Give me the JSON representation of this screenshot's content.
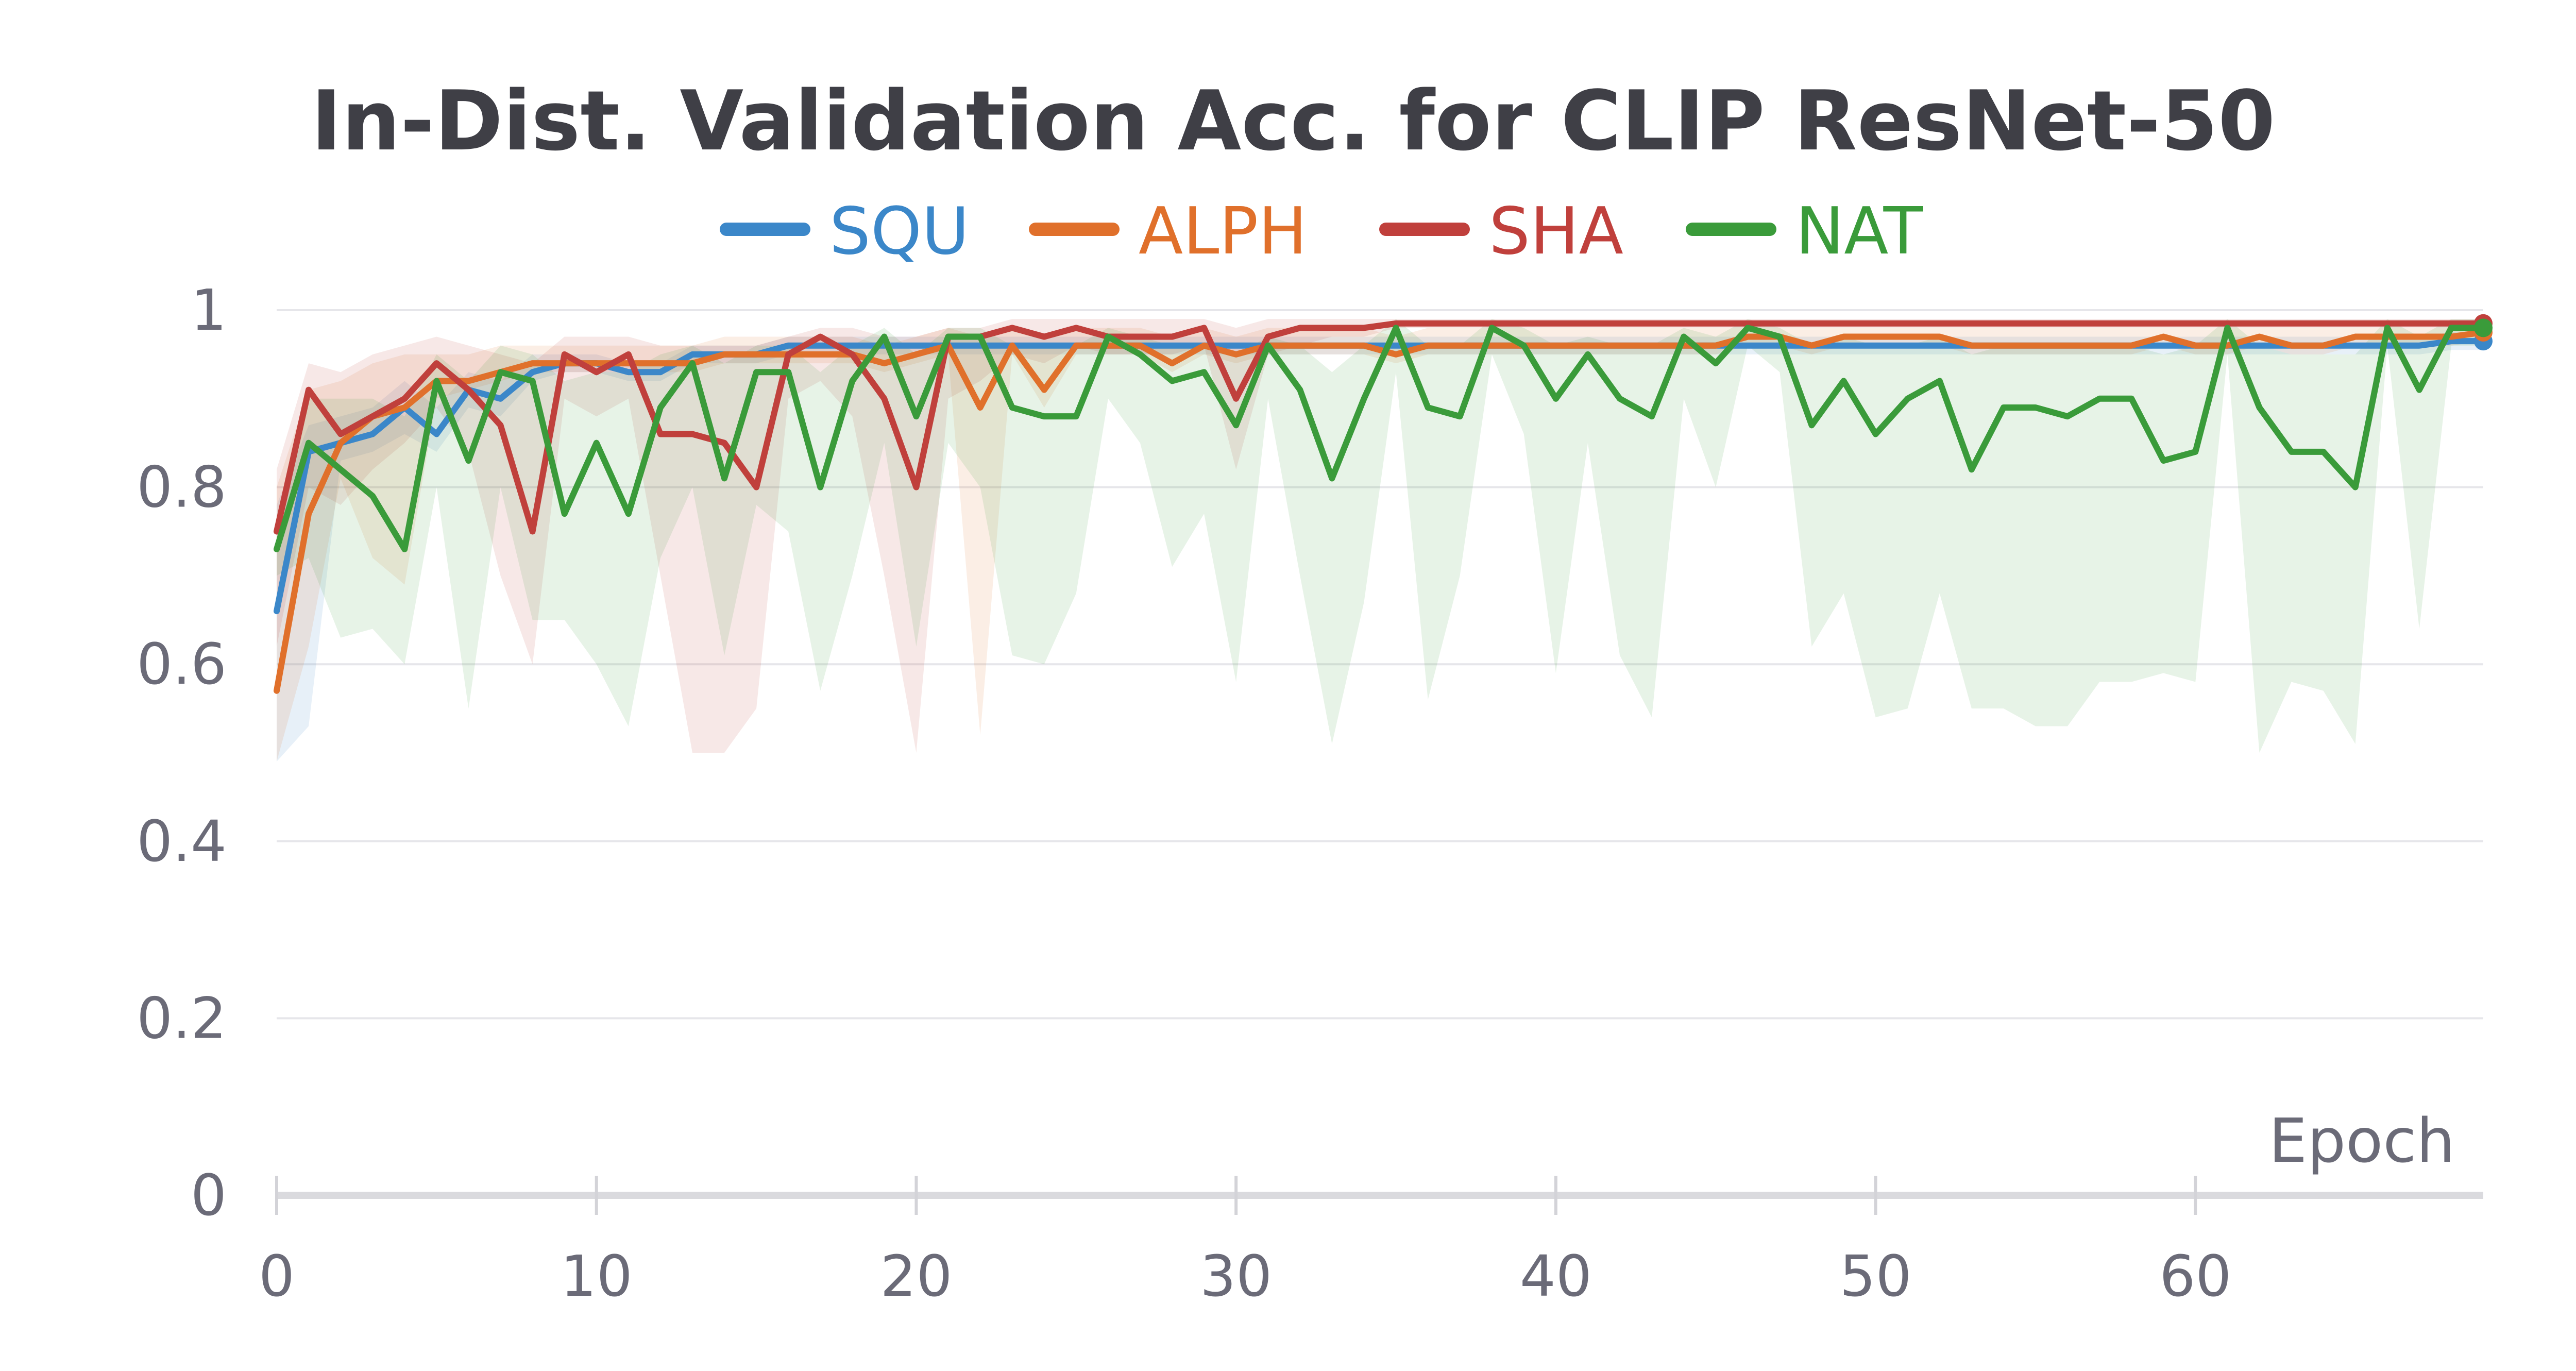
{
  "chart_data": {
    "type": "line",
    "title": "In-Dist. Validation Acc. for CLIP ResNet-50",
    "xlabel": "Epoch",
    "ylabel": "",
    "xlim": [
      0,
      69
    ],
    "ylim": [
      0,
      1
    ],
    "xticks": [
      0,
      10,
      20,
      30,
      40,
      50,
      60
    ],
    "xtick_labels": [
      "0",
      "10",
      "20",
      "30",
      "40",
      "50",
      "60"
    ],
    "yticks": [
      0,
      0.2,
      0.4,
      0.6,
      0.8,
      1
    ],
    "ytick_labels": [
      "0",
      "0.2",
      "0.4",
      "0.6",
      "0.8",
      "1"
    ],
    "grid": true,
    "legend_position": "top-center",
    "series": [
      {
        "name": "SQU",
        "color": "#3b87c9",
        "values": [
          0.66,
          0.84,
          0.85,
          0.86,
          0.89,
          0.86,
          0.91,
          0.9,
          0.93,
          0.94,
          0.94,
          0.93,
          0.93,
          0.95,
          0.95,
          0.95,
          0.96,
          0.96,
          0.96,
          0.96,
          0.96,
          0.96,
          0.96,
          0.96,
          0.96,
          0.96,
          0.96,
          0.96,
          0.96,
          0.96,
          0.96,
          0.96,
          0.96,
          0.96,
          0.96,
          0.96,
          0.96,
          0.96,
          0.96,
          0.96,
          0.96,
          0.96,
          0.96,
          0.96,
          0.96,
          0.96,
          0.96,
          0.96,
          0.96,
          0.96,
          0.96,
          0.96,
          0.96,
          0.96,
          0.96,
          0.96,
          0.96,
          0.96,
          0.96,
          0.96,
          0.96,
          0.96,
          0.96,
          0.96,
          0.96,
          0.96,
          0.96,
          0.96,
          0.965,
          0.965
        ],
        "band_lower": [
          0.49,
          0.53,
          0.83,
          0.84,
          0.86,
          0.84,
          0.89,
          0.88,
          0.92,
          0.93,
          0.93,
          0.92,
          0.92,
          0.94,
          0.94,
          0.94,
          0.95,
          0.95,
          0.95,
          0.95,
          0.95,
          0.95,
          0.95,
          0.95,
          0.95,
          0.95,
          0.95,
          0.95,
          0.95,
          0.95,
          0.95,
          0.95,
          0.95,
          0.95,
          0.95,
          0.95,
          0.95,
          0.95,
          0.95,
          0.95,
          0.95,
          0.95,
          0.95,
          0.95,
          0.95,
          0.95,
          0.95,
          0.95,
          0.95,
          0.95,
          0.95,
          0.95,
          0.95,
          0.95,
          0.95,
          0.95,
          0.95,
          0.95,
          0.95,
          0.95,
          0.95,
          0.95,
          0.95,
          0.95,
          0.95,
          0.95,
          0.95,
          0.95,
          0.955,
          0.955
        ],
        "band_upper": [
          0.78,
          0.87,
          0.88,
          0.89,
          0.92,
          0.89,
          0.93,
          0.92,
          0.95,
          0.95,
          0.95,
          0.94,
          0.94,
          0.96,
          0.96,
          0.96,
          0.97,
          0.97,
          0.97,
          0.97,
          0.97,
          0.97,
          0.97,
          0.97,
          0.97,
          0.97,
          0.97,
          0.97,
          0.97,
          0.97,
          0.97,
          0.97,
          0.97,
          0.97,
          0.97,
          0.97,
          0.97,
          0.97,
          0.97,
          0.97,
          0.97,
          0.97,
          0.97,
          0.97,
          0.97,
          0.97,
          0.97,
          0.97,
          0.97,
          0.97,
          0.97,
          0.97,
          0.97,
          0.97,
          0.97,
          0.97,
          0.97,
          0.97,
          0.97,
          0.97,
          0.97,
          0.97,
          0.97,
          0.97,
          0.97,
          0.97,
          0.97,
          0.97,
          0.975,
          0.975
        ]
      },
      {
        "name": "ALPH",
        "color": "#e0702b",
        "values": [
          0.57,
          0.77,
          0.85,
          0.88,
          0.89,
          0.92,
          0.92,
          0.93,
          0.94,
          0.94,
          0.94,
          0.94,
          0.94,
          0.94,
          0.95,
          0.95,
          0.95,
          0.95,
          0.95,
          0.94,
          0.95,
          0.96,
          0.89,
          0.96,
          0.91,
          0.96,
          0.96,
          0.96,
          0.94,
          0.96,
          0.95,
          0.96,
          0.96,
          0.96,
          0.96,
          0.95,
          0.96,
          0.96,
          0.96,
          0.96,
          0.96,
          0.96,
          0.96,
          0.96,
          0.96,
          0.96,
          0.97,
          0.97,
          0.96,
          0.97,
          0.97,
          0.97,
          0.97,
          0.96,
          0.96,
          0.96,
          0.96,
          0.96,
          0.96,
          0.97,
          0.96,
          0.96,
          0.97,
          0.96,
          0.96,
          0.97,
          0.97,
          0.97,
          0.97,
          0.975
        ],
        "band_lower": [
          0.49,
          0.62,
          0.81,
          0.72,
          0.69,
          0.9,
          0.91,
          0.92,
          0.93,
          0.93,
          0.93,
          0.93,
          0.93,
          0.93,
          0.94,
          0.94,
          0.94,
          0.94,
          0.94,
          0.93,
          0.94,
          0.95,
          0.52,
          0.95,
          0.89,
          0.95,
          0.95,
          0.95,
          0.93,
          0.95,
          0.94,
          0.95,
          0.95,
          0.95,
          0.95,
          0.94,
          0.95,
          0.95,
          0.95,
          0.95,
          0.95,
          0.95,
          0.95,
          0.95,
          0.95,
          0.95,
          0.96,
          0.96,
          0.95,
          0.96,
          0.96,
          0.96,
          0.96,
          0.95,
          0.95,
          0.95,
          0.95,
          0.95,
          0.95,
          0.96,
          0.95,
          0.95,
          0.96,
          0.95,
          0.95,
          0.96,
          0.96,
          0.96,
          0.96,
          0.965
        ],
        "band_upper": [
          0.8,
          0.91,
          0.92,
          0.94,
          0.95,
          0.95,
          0.95,
          0.96,
          0.96,
          0.96,
          0.96,
          0.96,
          0.96,
          0.96,
          0.97,
          0.97,
          0.97,
          0.97,
          0.97,
          0.96,
          0.97,
          0.98,
          0.97,
          0.98,
          0.97,
          0.98,
          0.98,
          0.98,
          0.97,
          0.98,
          0.97,
          0.98,
          0.98,
          0.98,
          0.98,
          0.97,
          0.98,
          0.98,
          0.98,
          0.98,
          0.98,
          0.98,
          0.98,
          0.98,
          0.98,
          0.98,
          0.98,
          0.98,
          0.98,
          0.98,
          0.98,
          0.98,
          0.98,
          0.98,
          0.98,
          0.98,
          0.98,
          0.98,
          0.98,
          0.98,
          0.98,
          0.98,
          0.98,
          0.98,
          0.98,
          0.98,
          0.98,
          0.98,
          0.98,
          0.985
        ]
      },
      {
        "name": "SHA",
        "color": "#c0403c",
        "values": [
          0.75,
          0.91,
          0.86,
          0.88,
          0.9,
          0.94,
          0.91,
          0.87,
          0.75,
          0.95,
          0.93,
          0.95,
          0.86,
          0.86,
          0.85,
          0.8,
          0.95,
          0.97,
          0.95,
          0.9,
          0.8,
          0.97,
          0.97,
          0.98,
          0.97,
          0.98,
          0.97,
          0.97,
          0.97,
          0.98,
          0.9,
          0.97,
          0.98,
          0.98,
          0.98,
          0.985,
          0.985,
          0.985,
          0.985,
          0.985,
          0.985,
          0.985,
          0.985,
          0.985,
          0.985,
          0.985,
          0.985,
          0.985,
          0.985,
          0.985,
          0.985,
          0.985,
          0.985,
          0.985,
          0.985,
          0.985,
          0.985,
          0.985,
          0.985,
          0.985,
          0.985,
          0.985,
          0.985,
          0.985,
          0.985,
          0.985,
          0.985,
          0.985,
          0.985,
          0.985
        ],
        "band_lower": [
          0.62,
          0.8,
          0.78,
          0.82,
          0.85,
          0.89,
          0.84,
          0.7,
          0.6,
          0.9,
          0.88,
          0.9,
          0.7,
          0.5,
          0.5,
          0.55,
          0.9,
          0.92,
          0.88,
          0.7,
          0.5,
          0.9,
          0.92,
          0.95,
          0.94,
          0.96,
          0.95,
          0.95,
          0.95,
          0.96,
          0.82,
          0.95,
          0.96,
          0.97,
          0.97,
          0.98,
          0.98,
          0.98,
          0.98,
          0.98,
          0.98,
          0.98,
          0.98,
          0.98,
          0.98,
          0.98,
          0.98,
          0.98,
          0.98,
          0.98,
          0.98,
          0.98,
          0.98,
          0.98,
          0.98,
          0.98,
          0.98,
          0.98,
          0.98,
          0.98,
          0.98,
          0.98,
          0.98,
          0.98,
          0.98,
          0.98,
          0.98,
          0.98,
          0.98,
          0.98
        ],
        "band_upper": [
          0.82,
          0.94,
          0.93,
          0.95,
          0.96,
          0.97,
          0.96,
          0.95,
          0.94,
          0.97,
          0.97,
          0.97,
          0.96,
          0.96,
          0.96,
          0.96,
          0.97,
          0.98,
          0.98,
          0.97,
          0.97,
          0.98,
          0.98,
          0.99,
          0.99,
          0.99,
          0.99,
          0.99,
          0.99,
          0.99,
          0.98,
          0.99,
          0.99,
          0.99,
          0.99,
          0.99,
          0.99,
          0.99,
          0.99,
          0.99,
          0.99,
          0.99,
          0.99,
          0.99,
          0.99,
          0.99,
          0.99,
          0.99,
          0.99,
          0.99,
          0.99,
          0.99,
          0.99,
          0.99,
          0.99,
          0.99,
          0.99,
          0.99,
          0.99,
          0.99,
          0.99,
          0.99,
          0.99,
          0.99,
          0.99,
          0.99,
          0.99,
          0.99,
          0.99,
          0.99
        ]
      },
      {
        "name": "NAT",
        "color": "#3a9b3a",
        "values": [
          0.73,
          0.85,
          0.82,
          0.79,
          0.73,
          0.92,
          0.83,
          0.93,
          0.92,
          0.77,
          0.85,
          0.77,
          0.89,
          0.94,
          0.81,
          0.93,
          0.93,
          0.8,
          0.92,
          0.97,
          0.88,
          0.97,
          0.97,
          0.89,
          0.88,
          0.88,
          0.97,
          0.95,
          0.92,
          0.93,
          0.87,
          0.96,
          0.91,
          0.81,
          0.9,
          0.98,
          0.89,
          0.88,
          0.98,
          0.96,
          0.9,
          0.95,
          0.9,
          0.88,
          0.97,
          0.94,
          0.98,
          0.97,
          0.87,
          0.92,
          0.86,
          0.9,
          0.92,
          0.82,
          0.89,
          0.89,
          0.88,
          0.9,
          0.9,
          0.83,
          0.84,
          0.98,
          0.89,
          0.84,
          0.84,
          0.8,
          0.98,
          0.91,
          0.98,
          0.98
        ],
        "band_lower": [
          0.7,
          0.72,
          0.63,
          0.64,
          0.6,
          0.8,
          0.55,
          0.8,
          0.65,
          0.65,
          0.6,
          0.53,
          0.72,
          0.8,
          0.61,
          0.78,
          0.75,
          0.57,
          0.7,
          0.85,
          0.62,
          0.85,
          0.8,
          0.61,
          0.6,
          0.68,
          0.9,
          0.85,
          0.71,
          0.77,
          0.58,
          0.9,
          0.7,
          0.51,
          0.67,
          0.93,
          0.56,
          0.7,
          0.95,
          0.86,
          0.59,
          0.85,
          0.61,
          0.54,
          0.9,
          0.8,
          0.96,
          0.93,
          0.62,
          0.68,
          0.54,
          0.55,
          0.68,
          0.55,
          0.55,
          0.53,
          0.53,
          0.58,
          0.58,
          0.59,
          0.58,
          0.95,
          0.5,
          0.58,
          0.57,
          0.51,
          0.96,
          0.64,
          0.96,
          0.96
        ],
        "band_upper": [
          0.75,
          0.9,
          0.9,
          0.9,
          0.88,
          0.95,
          0.92,
          0.96,
          0.95,
          0.92,
          0.93,
          0.93,
          0.95,
          0.96,
          0.94,
          0.96,
          0.96,
          0.93,
          0.96,
          0.98,
          0.95,
          0.98,
          0.98,
          0.96,
          0.96,
          0.96,
          0.98,
          0.97,
          0.96,
          0.96,
          0.95,
          0.97,
          0.96,
          0.93,
          0.96,
          0.99,
          0.96,
          0.96,
          0.99,
          0.98,
          0.96,
          0.97,
          0.96,
          0.96,
          0.98,
          0.97,
          0.99,
          0.98,
          0.96,
          0.97,
          0.96,
          0.96,
          0.97,
          0.95,
          0.96,
          0.96,
          0.96,
          0.96,
          0.96,
          0.95,
          0.96,
          0.99,
          0.96,
          0.95,
          0.95,
          0.95,
          0.99,
          0.97,
          0.99,
          0.99
        ]
      }
    ]
  }
}
